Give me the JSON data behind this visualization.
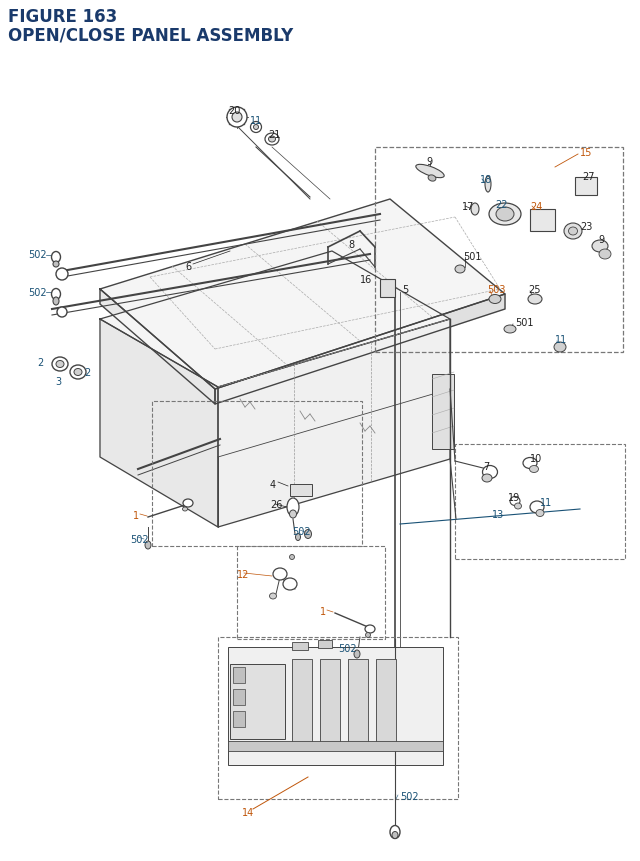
{
  "title_line1": "FIGURE 163",
  "title_line2": "OPEN/CLOSE PANEL ASSEMBLY",
  "title_color": "#1a3a6b",
  "title_fontsize": 12,
  "bg_color": "#ffffff",
  "lc": "#444444",
  "dc": "#777777",
  "bc": "#222222",
  "blc": "#1a5276",
  "oc": "#c0560a",
  "tc": "#1a7a6b"
}
